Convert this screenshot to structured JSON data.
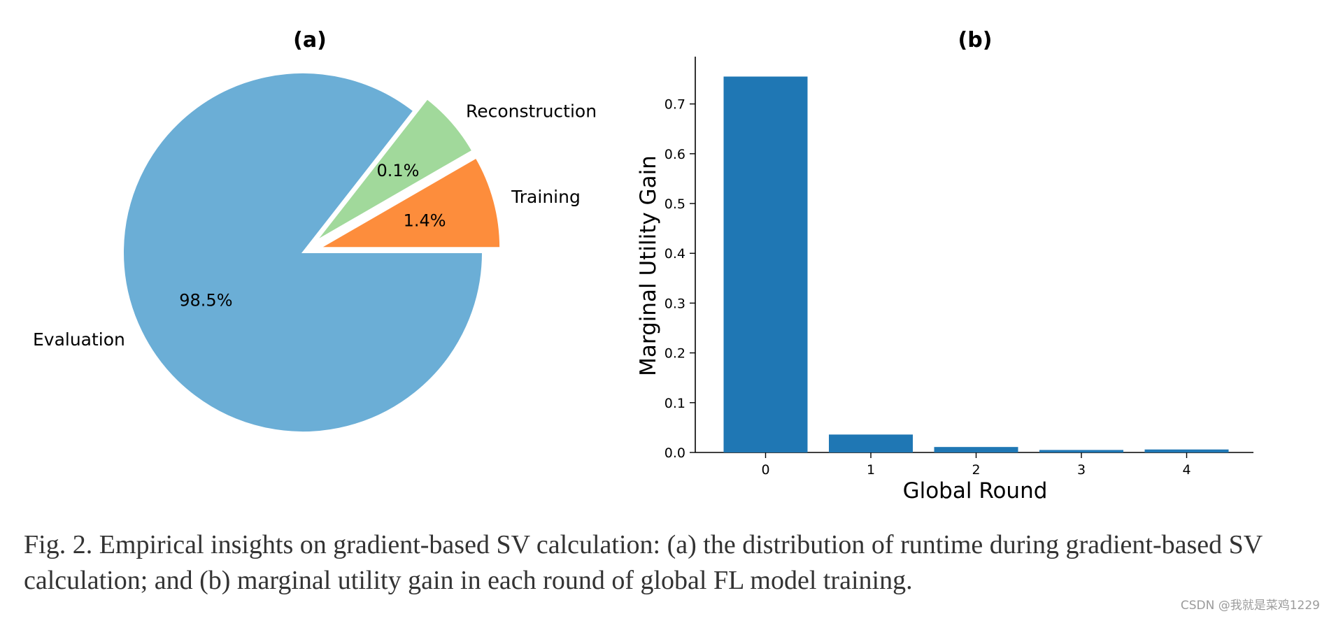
{
  "chart_data": [
    {
      "type": "pie",
      "title": "(a)",
      "slices": [
        {
          "label": "Evaluation",
          "value": 98.5,
          "pct_label": "98.5%",
          "color": "#6baed6",
          "exploded": false
        },
        {
          "label": "Training",
          "value": 1.4,
          "pct_label": "1.4%",
          "color": "#fd8d3c",
          "exploded": true
        },
        {
          "label": "Reconstruction",
          "value": 0.1,
          "pct_label": "0.1%",
          "color": "#a1d99b",
          "exploded": true
        }
      ]
    },
    {
      "type": "bar",
      "title": "(b)",
      "xlabel": "Global Round",
      "ylabel": "Marginal Utility Gain",
      "categories": [
        "0",
        "1",
        "2",
        "3",
        "4"
      ],
      "values": [
        0.755,
        0.036,
        0.011,
        0.005,
        0.006
      ],
      "ylim": [
        0,
        0.795
      ],
      "yticks": [
        "0.0",
        "0.1",
        "0.2",
        "0.3",
        "0.4",
        "0.5",
        "0.6",
        "0.7"
      ],
      "color": "#1f77b4"
    }
  ],
  "caption": "Fig. 2.  Empirical insights on gradient-based SV calculation: (a) the distribution of runtime during gradient-based SV calculation; and (b) marginal utility gain in each round of global FL model training.",
  "watermark": "CSDN @我就是菜鸡1229"
}
